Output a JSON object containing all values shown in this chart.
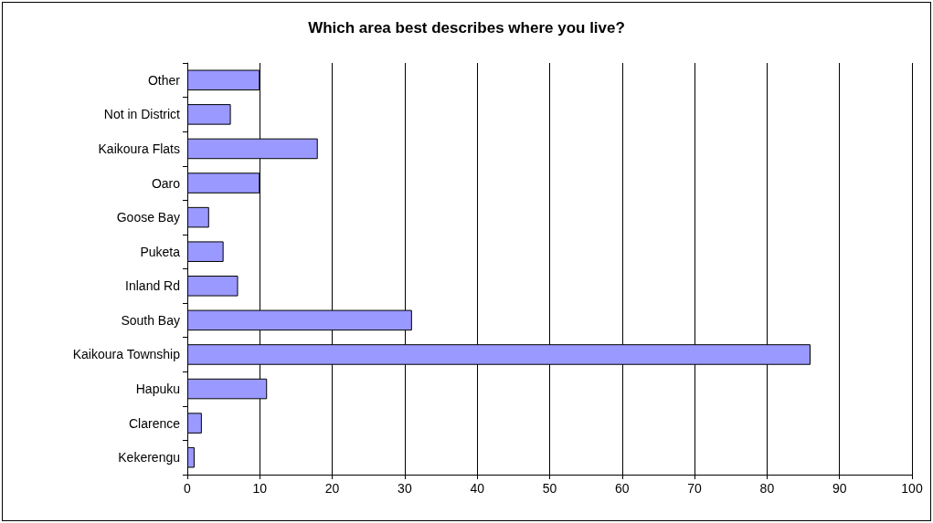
{
  "chart_data": {
    "type": "bar",
    "orientation": "horizontal",
    "title": "Which area best describes where you live?",
    "categories": [
      "Other",
      "Not in District",
      "Kaikoura Flats",
      "Oaro",
      "Goose Bay",
      "Puketa",
      "Inland Rd",
      "South Bay",
      "Kaikoura Township",
      "Hapuku",
      "Clarence",
      "Kekerengu"
    ],
    "values": [
      10,
      6,
      18,
      10,
      3,
      5,
      7,
      31,
      86,
      11,
      2,
      1
    ],
    "color": "#9999ff",
    "xlim": [
      0,
      100
    ],
    "xticks": [
      0,
      10,
      20,
      30,
      40,
      50,
      60,
      70,
      80,
      90,
      100
    ],
    "grid": "x"
  }
}
